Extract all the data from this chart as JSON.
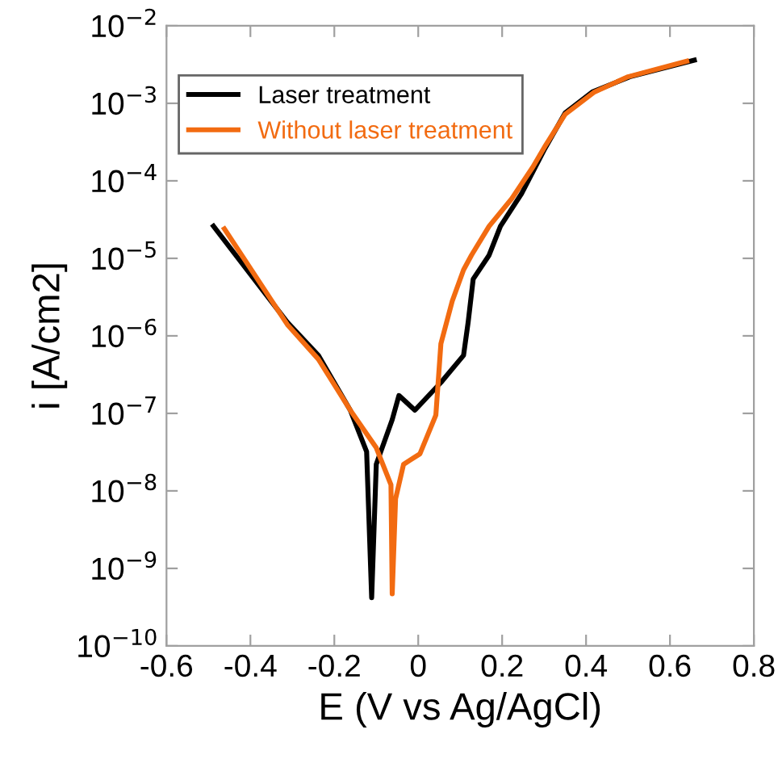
{
  "chart_data": {
    "type": "line",
    "xlabel": "E (V vs Ag/AgCl)",
    "ylabel": "i [A/cm2]",
    "log": "y",
    "xlim": [
      -0.6,
      0.8
    ],
    "xticks": [
      -0.6,
      -0.4,
      -0.2,
      0,
      0.2,
      0.4,
      0.6,
      0.8
    ],
    "ylim": [
      1e-10,
      0.01
    ],
    "yticks": [
      {
        "value": 1e-10,
        "label": "10$^{−10}$"
      },
      {
        "value": 1e-09,
        "label": "10$^{−9}$"
      },
      {
        "value": 1e-08,
        "label": "10$^{−8}$"
      },
      {
        "value": 1e-07,
        "label": "10$^{−7}$"
      },
      {
        "value": 1e-06,
        "label": "10$^{−6}$"
      },
      {
        "value": 1e-05,
        "label": "10$^{−5}$"
      },
      {
        "value": 0.0001,
        "label": "10$^{−4}$"
      },
      {
        "value": 0.001,
        "label": "10$^{−3}$"
      },
      {
        "value": 0.01,
        "label": "10$^{−2}$"
      }
    ],
    "grid": false,
    "legend": "top left",
    "marker": "none",
    "line_style": "solid",
    "series": [
      {
        "name": "Laser treatment",
        "color": "#000000",
        "x": [
          -0.488,
          -0.312,
          -0.238,
          -0.162,
          -0.123,
          -0.111,
          -0.1,
          -0.062,
          -0.046,
          -0.008,
          0.054,
          0.108,
          0.119,
          0.131,
          0.169,
          0.196,
          0.246,
          0.3,
          0.35,
          0.415,
          0.504,
          0.658
        ],
        "values": [
          2.6e-05,
          1.5e-06,
          5.6e-07,
          1.1e-07,
          3.2e-08,
          4.2e-10,
          2.2e-08,
          8.3e-08,
          1.7e-07,
          1.1e-07,
          2.5e-07,
          5.6e-07,
          1.5e-06,
          5.4e-06,
          1.1e-05,
          2.6e-05,
          6.8e-05,
          0.00025,
          0.00075,
          0.0014,
          0.0022,
          0.0036
        ]
      },
      {
        "name": "Without laser treatment",
        "color": "#f26b11",
        "x": [
          -0.462,
          -0.312,
          -0.238,
          -0.162,
          -0.1,
          -0.065,
          -0.062,
          -0.054,
          -0.035,
          0.004,
          0.042,
          0.054,
          0.081,
          0.108,
          0.127,
          0.169,
          0.223,
          0.273,
          0.304,
          0.35,
          0.42,
          0.5,
          0.64
        ],
        "values": [
          2.4e-05,
          1.4e-06,
          5e-07,
          1.1e-07,
          3.6e-08,
          1.2e-08,
          4.7e-10,
          7.9e-09,
          2.2e-08,
          3e-08,
          9.5e-08,
          7.9e-07,
          2.8e-06,
          7.1e-06,
          1.1e-05,
          2.6e-05,
          5.9e-05,
          0.00015,
          0.00029,
          0.00072,
          0.0014,
          0.0022,
          0.0035
        ]
      }
    ]
  }
}
